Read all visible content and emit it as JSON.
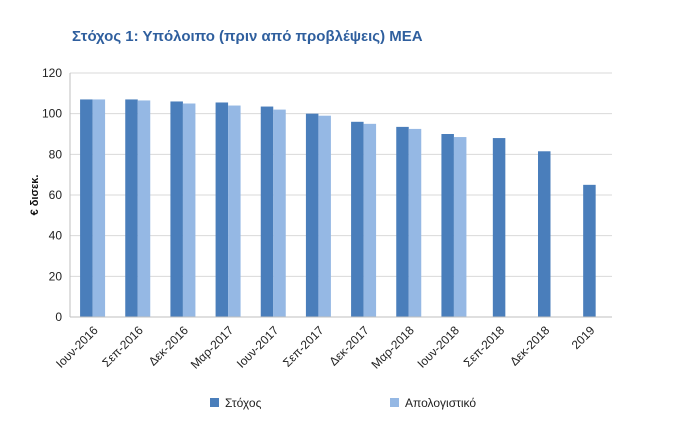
{
  "chart_data": {
    "type": "bar",
    "title": "Στόχος 1: Υπόλοιπο (πριν από προβλέψεις) ΜΕΑ",
    "ylabel": "€ δισεκ.",
    "xlabel": "",
    "ylim": [
      0,
      120
    ],
    "yticks": [
      0,
      20,
      40,
      60,
      80,
      100,
      120
    ],
    "grid": true,
    "legend_position": "bottom",
    "categories": [
      "Ιουν-2016",
      "Σεπ-2016",
      "Δεκ-2016",
      "Μαρ-2017",
      "Ιουν-2017",
      "Σεπ-2017",
      "Δεκ-2017",
      "Μαρ-2018",
      "Ιουν-2018",
      "Σεπ-2018",
      "Δεκ-2018",
      "2019"
    ],
    "series": [
      {
        "name": "Στόχος",
        "color": "#4a7ebb",
        "values": [
          107,
          107,
          106,
          105.5,
          103.5,
          100,
          96,
          93.5,
          90,
          88,
          81.5,
          65
        ]
      },
      {
        "name": "Απολογιστικό",
        "color": "#95b8e4",
        "values": [
          107,
          106.5,
          105,
          104,
          102,
          99,
          95,
          92.5,
          88.5,
          null,
          null,
          null
        ]
      }
    ]
  }
}
